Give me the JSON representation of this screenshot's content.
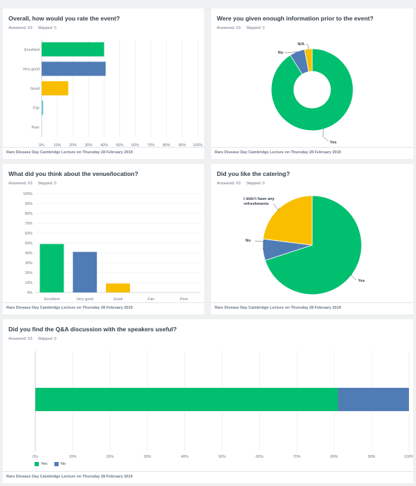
{
  "footer_text": "Rare Disease Day Cambridge Lecture on Thursday 28 February 2019",
  "colors": {
    "green": "#00bf6f",
    "blue": "#507cb6",
    "yellow": "#f9be00",
    "teal": "#6bc8cd"
  },
  "charts": [
    {
      "title": "Overall, how would you rate the event?",
      "answered": "Answered: 63",
      "skipped": "Skipped: 0",
      "chart_data": {
        "type": "bar",
        "orientation": "horizontal",
        "categories": [
          "Excellent",
          "Very good",
          "Good",
          "Fair",
          "Poor"
        ],
        "values": [
          40,
          41,
          17,
          1,
          0
        ],
        "unit": "%",
        "xlim": [
          0,
          100
        ],
        "ticks": [
          "0%",
          "10%",
          "20%",
          "30%",
          "40%",
          "50%",
          "60%",
          "70%",
          "80%",
          "90%",
          "100%"
        ],
        "colors": [
          "#00bf6f",
          "#507cb6",
          "#f9be00",
          "#6bc8cd",
          "#6bc8cd"
        ]
      }
    },
    {
      "title": "Were you given enough information prior to the event?",
      "answered": "Answered: 63",
      "skipped": "Skipped: 0",
      "chart_data": {
        "type": "pie",
        "donut": true,
        "categories": [
          "Yes",
          "No",
          "N/A"
        ],
        "values": [
          91,
          6,
          3
        ],
        "unit": "%",
        "colors": [
          "#00bf6f",
          "#507cb6",
          "#f9be00"
        ]
      }
    },
    {
      "title": "What did you think about the venue/location?",
      "answered": "Answered: 63",
      "skipped": "Skipped: 0",
      "chart_data": {
        "type": "bar",
        "orientation": "vertical",
        "categories": [
          "Excellent",
          "Very good",
          "Good",
          "Fair",
          "Poor"
        ],
        "values": [
          49,
          41,
          9,
          0,
          0
        ],
        "unit": "%",
        "ylim": [
          0,
          100
        ],
        "ticks": [
          "0%",
          "10%",
          "20%",
          "30%",
          "40%",
          "50%",
          "60%",
          "70%",
          "80%",
          "90%",
          "100%"
        ],
        "colors": [
          "#00bf6f",
          "#507cb6",
          "#f9be00",
          "#6bc8cd",
          "#6bc8cd"
        ]
      }
    },
    {
      "title": "Did you like the catering?",
      "answered": "Answered: 63",
      "skipped": "Skipped: 0",
      "chart_data": {
        "type": "pie",
        "donut": false,
        "categories": [
          "Yes",
          "No",
          "I didn't have any refreshments"
        ],
        "values": [
          70,
          7,
          23
        ],
        "unit": "%",
        "colors": [
          "#00bf6f",
          "#507cb6",
          "#f9be00"
        ]
      }
    },
    {
      "title": "Did you find the Q&A discussion with the speakers useful?",
      "answered": "Answered: 63",
      "skipped": "Skipped: 0",
      "chart_data": {
        "type": "bar",
        "orientation": "horizontal",
        "stacked": true,
        "series": [
          {
            "name": "Yes",
            "values": [
              81
            ]
          },
          {
            "name": "No",
            "values": [
              19
            ]
          }
        ],
        "unit": "%",
        "xlim": [
          0,
          100
        ],
        "ticks": [
          "0%",
          "10%",
          "20%",
          "30%",
          "40%",
          "50%",
          "60%",
          "70%",
          "80%",
          "90%",
          "100%"
        ],
        "colors": [
          "#00bf6f",
          "#507cb6"
        ],
        "legend": "bottom-left"
      }
    }
  ]
}
